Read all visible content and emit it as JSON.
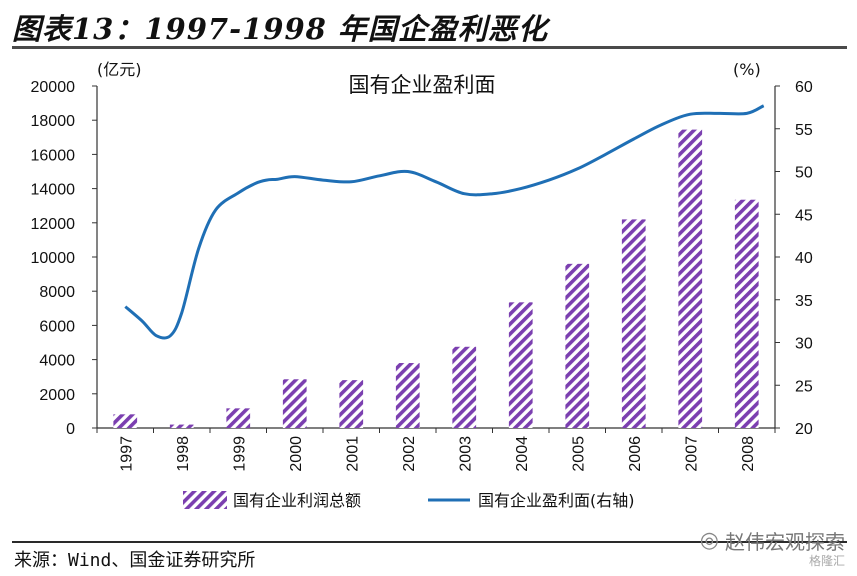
{
  "figure": {
    "title": "图表13：1997-1998 年国企盈利恶化",
    "source": "来源：Wind、国金证券研究所",
    "watermark": "赵伟宏观探索",
    "watermark_sub": "格隆汇"
  },
  "chart_data": {
    "type": "bar",
    "title": "国有企业盈利面",
    "categories": [
      "1997",
      "1998",
      "1999",
      "2000",
      "2001",
      "2002",
      "2003",
      "2004",
      "2005",
      "2006",
      "2007",
      "2008"
    ],
    "left_unit": "(亿元)",
    "right_unit": "(%)",
    "y_left": {
      "ylim": [
        0,
        20000
      ],
      "ticks": [
        "0",
        "2000",
        "4000",
        "6000",
        "8000",
        "10000",
        "12000",
        "14000",
        "16000",
        "18000",
        "20000"
      ]
    },
    "y_right": {
      "ylim": [
        20,
        60
      ],
      "ticks": [
        "20",
        "25",
        "30",
        "35",
        "40",
        "45",
        "50",
        "55",
        "60"
      ]
    },
    "series": [
      {
        "name": "国有企业利润总额",
        "kind": "bar",
        "axis": "left",
        "color": "#7b3fb0",
        "values": [
          800,
          200,
          1150,
          2850,
          2800,
          3800,
          4750,
          7350,
          9600,
          12200,
          17450,
          13350
        ]
      },
      {
        "name": "国有企业盈利面(右轴)",
        "kind": "line",
        "axis": "right",
        "color": "#1f6fb5",
        "x": [
          1997.0,
          1997.3,
          1997.55,
          1997.8,
          1998.0,
          1998.3,
          1998.6,
          1999.0,
          1999.3,
          1999.5,
          1999.7,
          2000.0,
          2000.5,
          2001.0,
          2001.5,
          2002.0,
          2002.5,
          2003.0,
          2003.5,
          2004.0,
          2004.5,
          2005.0,
          2005.5,
          2006.0,
          2006.5,
          2007.0,
          2007.5,
          2008.0,
          2008.3
        ],
        "values": [
          34.2,
          32.5,
          30.8,
          30.8,
          33.5,
          41.0,
          45.5,
          47.5,
          48.6,
          49.0,
          49.1,
          49.4,
          49.0,
          48.8,
          49.5,
          50.0,
          48.8,
          47.4,
          47.4,
          48.0,
          49.0,
          50.3,
          52.0,
          53.8,
          55.5,
          56.7,
          56.8,
          56.8,
          57.7
        ]
      }
    ],
    "legend_position": "bottom",
    "grid": false
  }
}
